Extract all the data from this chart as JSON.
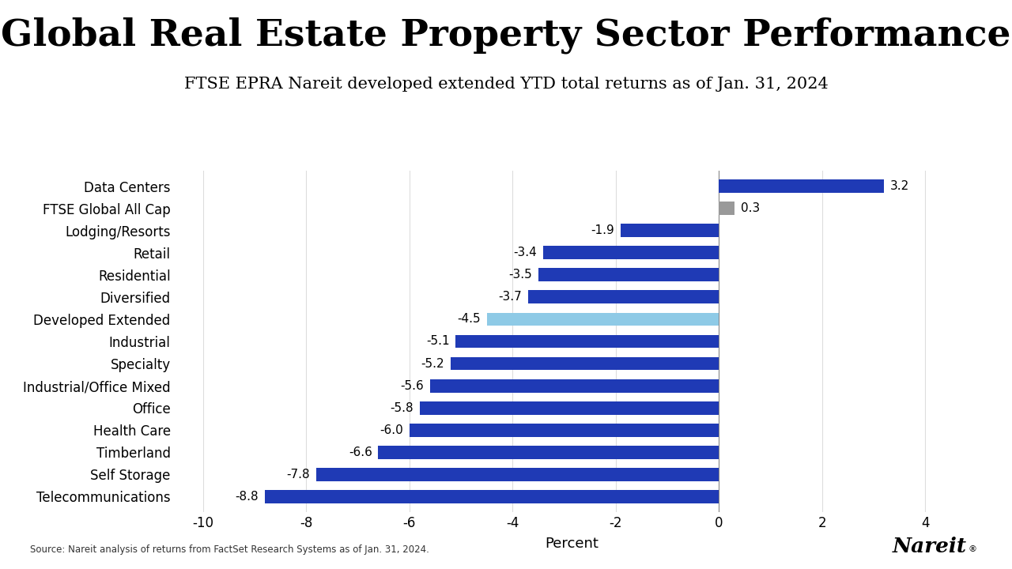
{
  "title": "Global Real Estate Property Sector Performance",
  "subtitle": "FTSE EPRA Nareit developed extended YTD total returns as of Jan. 31, 2024",
  "categories": [
    "Telecommunications",
    "Self Storage",
    "Timberland",
    "Health Care",
    "Office",
    "Industrial/Office Mixed",
    "Specialty",
    "Industrial",
    "Developed Extended",
    "Diversified",
    "Residential",
    "Retail",
    "Lodging/Resorts",
    "FTSE Global All Cap",
    "Data Centers"
  ],
  "values": [
    -8.8,
    -7.8,
    -6.6,
    -6.0,
    -5.8,
    -5.6,
    -5.2,
    -5.1,
    -4.5,
    -3.7,
    -3.5,
    -3.4,
    -1.9,
    0.3,
    3.2
  ],
  "bar_colors": [
    "#1f3ab5",
    "#1f3ab5",
    "#1f3ab5",
    "#1f3ab5",
    "#1f3ab5",
    "#1f3ab5",
    "#1f3ab5",
    "#1f3ab5",
    "#8ecae6",
    "#1f3ab5",
    "#1f3ab5",
    "#1f3ab5",
    "#1f3ab5",
    "#999999",
    "#1f3ab5"
  ],
  "xlabel": "Percent",
  "xlim": [
    -10.5,
    4.8
  ],
  "xticks": [
    -10,
    -8,
    -6,
    -4,
    -2,
    0,
    2,
    4
  ],
  "source_text": "Source: Nareit analysis of returns from FactSet Research Systems as of Jan. 31, 2024.",
  "background_color": "#ffffff",
  "title_fontsize": 34,
  "subtitle_fontsize": 15,
  "tick_fontsize": 12,
  "value_fontsize": 11,
  "ytick_fontsize": 12
}
